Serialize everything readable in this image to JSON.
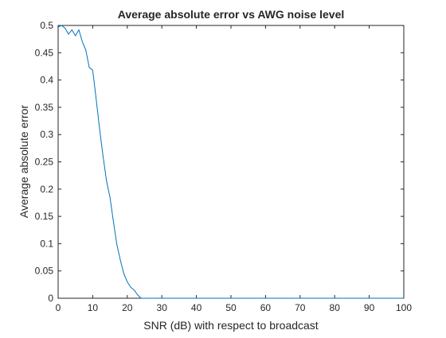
{
  "chart_data": {
    "type": "line",
    "title": "Average absolute error vs AWG noise level",
    "xlabel": "SNR (dB) with respect to broadcast",
    "ylabel": "Average absolute error",
    "xlim": [
      0,
      100
    ],
    "ylim": [
      0,
      0.5
    ],
    "xticks": [
      0,
      10,
      20,
      30,
      40,
      50,
      60,
      70,
      80,
      90,
      100
    ],
    "yticks": [
      0,
      0.05,
      0.1,
      0.15,
      0.2,
      0.25,
      0.3,
      0.35,
      0.4,
      0.45,
      0.5
    ],
    "xtick_labels": [
      "0",
      "10",
      "20",
      "30",
      "40",
      "50",
      "60",
      "70",
      "80",
      "90",
      "100"
    ],
    "ytick_labels": [
      "0",
      "0.05",
      "0.1",
      "0.15",
      "0.2",
      "0.25",
      "0.3",
      "0.35",
      "0.4",
      "0.45",
      "0.5"
    ],
    "grid": false,
    "box": true,
    "series": [
      {
        "color": "#0072BD",
        "x": [
          0,
          1,
          2,
          3,
          4,
          5,
          6,
          7,
          8,
          9,
          10,
          11,
          12,
          13,
          14,
          15,
          16,
          17,
          18,
          19,
          20,
          21,
          22,
          23,
          24,
          25,
          26,
          30,
          40,
          50,
          60,
          70,
          80,
          90,
          100
        ],
        "y": [
          0.497,
          0.5,
          0.495,
          0.484,
          0.492,
          0.481,
          0.492,
          0.47,
          0.455,
          0.423,
          0.418,
          0.365,
          0.31,
          0.26,
          0.215,
          0.185,
          0.14,
          0.098,
          0.07,
          0.045,
          0.03,
          0.02,
          0.015,
          0.006,
          0.0,
          0.0,
          0.0,
          0.0,
          0.0,
          0.0,
          0.0,
          0.0,
          0.0,
          0.0,
          0.0
        ]
      }
    ]
  }
}
